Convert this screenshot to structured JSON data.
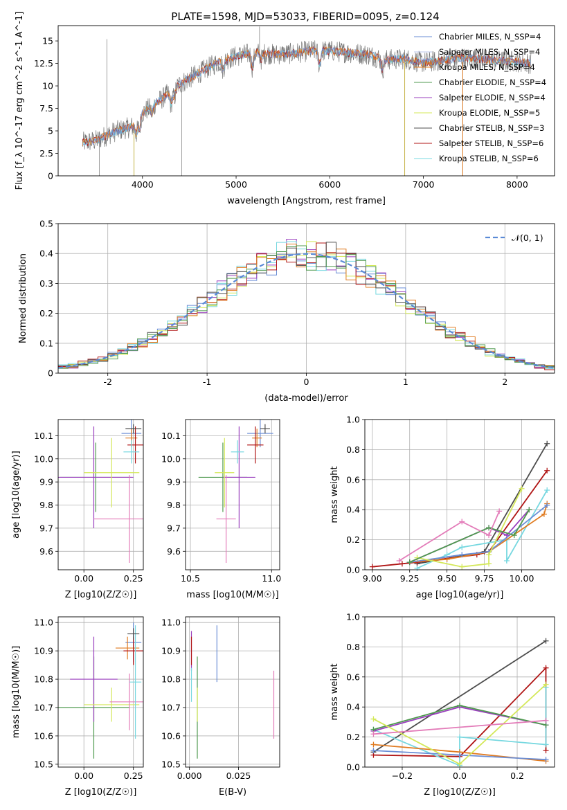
{
  "figure_title": "PLATE=1598, MJD=53033, FIBERID=0095, z=0.124",
  "colors": {
    "Chabrier MILES": "#6a8ed6",
    "Salpeter MILES": "#b8c4ea",
    "Kroupa MILES": "#e07b21",
    "Chabrier ELODIE": "#4f9a4f",
    "Salpeter ELODIE": "#9a3fbe",
    "Kroupa ELODIE": "#d4e85a",
    "Chabrier STELIB": "#4d4d4d",
    "Salpeter STELIB": "#b01515",
    "Kroupa STELIB": "#77d8e0",
    "Pink": "#e37cb9",
    "Normal": "#5a8ad6"
  },
  "chart_data": [
    {
      "id": "spectrum",
      "type": "line",
      "title": "PLATE=1598, MJD=53033, FIBERID=0095, z=0.124",
      "xlabel": "wavelength [Angstrom, rest frame]",
      "ylabel": "Flux [f_λ 10^-17 erg cm^-2 s^-1 A^-1]",
      "xlim": [
        3100,
        8400
      ],
      "ylim": [
        0,
        16.7
      ],
      "xticks": [
        4000,
        5000,
        6000,
        7000,
        8000
      ],
      "yticks": [
        0.0,
        2.5,
        5.0,
        7.5,
        10.0,
        12.5,
        15.0
      ],
      "legend": [
        "Chabrier MILES, N_SSP=4",
        "Salpeter MILES, N_SSP=4",
        "Kroupa MILES, N_SSP=4",
        "Chabrier ELODIE, N_SSP=4",
        "Salpeter ELODIE, N_SSP=4",
        "Kroupa ELODIE, N_SSP=5",
        "Chabrier STELIB, N_SSP=3",
        "Salpeter STELIB, N_SSP=6",
        "Kroupa STELIB, N_SSP=6"
      ],
      "legend_loc": "upper right",
      "continuum": {
        "x": [
          3360,
          3500,
          3700,
          3900,
          4000,
          4200,
          4400,
          4600,
          4800,
          5000,
          5200,
          5400,
          5600,
          5800,
          6000,
          6200,
          6400,
          6600,
          6800,
          7000,
          7200,
          7400,
          7600,
          7800,
          8000,
          8150
        ],
        "y": [
          3.7,
          3.9,
          4.9,
          5.5,
          7.0,
          8.5,
          10.2,
          11.4,
          12.6,
          13.3,
          13.7,
          13.5,
          13.6,
          13.9,
          13.9,
          13.7,
          13.5,
          12.9,
          13.0,
          12.6,
          12.8,
          13.1,
          13.0,
          12.8,
          12.7,
          12.5
        ]
      }
    },
    {
      "id": "residuals",
      "type": "histogram",
      "xlabel": "(data-model)/error",
      "ylabel": "Normed distribution",
      "xlim": [
        -2.5,
        2.5
      ],
      "ylim": [
        0,
        0.5
      ],
      "xticks": [
        -2,
        -1,
        0,
        1,
        2
      ],
      "yticks": [
        0.0,
        0.1,
        0.2,
        0.3,
        0.4,
        0.5
      ],
      "legend": [
        "𝒩(0, 1)"
      ],
      "legend_loc": "upper right",
      "bin_width": 0.1
    },
    {
      "id": "age_vs_Z",
      "type": "scatter",
      "xlabel": "Z [log10(Z/Z☉)]",
      "ylabel": "age [log10(age/yr)]",
      "xlim": [
        -0.13,
        0.3
      ],
      "ylim": [
        9.52,
        10.17
      ],
      "xticks": [
        "0.00",
        "0.25"
      ],
      "yticks": [
        "9.6",
        "9.7",
        "9.8",
        "9.9",
        "10.0",
        "10.1"
      ],
      "points": [
        {
          "model": "Chabrier ELODIE",
          "x": 0.06,
          "xerr": 0.18,
          "y": 9.92,
          "yerr": 0.15
        },
        {
          "model": "Salpeter ELODIE",
          "x": 0.05,
          "xerr": 0.2,
          "y": 9.92,
          "yerr": 0.22
        },
        {
          "model": "Kroupa ELODIE",
          "x": 0.14,
          "xerr": 0.14,
          "y": 9.94,
          "yerr": 0.15
        },
        {
          "model": "Pink",
          "x": 0.23,
          "xerr": 0.18,
          "y": 9.74,
          "yerr": 0.19
        },
        {
          "model": "Chabrier MILES",
          "x": 0.24,
          "xerr": 0.05,
          "y": 10.11,
          "yerr": 0.06
        },
        {
          "model": "Kroupa MILES",
          "x": 0.24,
          "xerr": 0.03,
          "y": 10.09,
          "yerr": 0.04
        },
        {
          "model": "Salpeter STELIB",
          "x": 0.26,
          "xerr": 0.04,
          "y": 10.06,
          "yerr": 0.08
        },
        {
          "model": "Kroupa STELIB",
          "x": 0.24,
          "xerr": 0.04,
          "y": 10.03,
          "yerr": 0.05
        },
        {
          "model": "Chabrier STELIB",
          "x": 0.25,
          "xerr": 0.04,
          "y": 10.13,
          "yerr": 0.02
        }
      ]
    },
    {
      "id": "age_vs_mass",
      "type": "scatter",
      "xlabel": "mass [log10(M/M☉)]",
      "xlim": [
        10.47,
        11.05
      ],
      "ylim": [
        9.52,
        10.17
      ],
      "xticks": [
        "10.5",
        "11.0"
      ],
      "yticks": [
        "9.6",
        "9.7",
        "9.8",
        "9.9",
        "10.0",
        "10.1"
      ],
      "points": [
        {
          "model": "Chabrier ELODIE",
          "x": 10.7,
          "xerr": 0.15,
          "y": 9.92,
          "yerr": 0.15
        },
        {
          "model": "Salpeter ELODIE",
          "x": 10.8,
          "xerr": 0.1,
          "y": 9.92,
          "yerr": 0.22
        },
        {
          "model": "Kroupa ELODIE",
          "x": 10.71,
          "xerr": 0.06,
          "y": 9.94,
          "yerr": 0.15
        },
        {
          "model": "Pink",
          "x": 10.72,
          "xerr": 0.06,
          "y": 9.74,
          "yerr": 0.19
        },
        {
          "model": "Chabrier MILES",
          "x": 10.93,
          "xerr": 0.08,
          "y": 10.11,
          "yerr": 0.06
        },
        {
          "model": "Kroupa MILES",
          "x": 10.91,
          "xerr": 0.03,
          "y": 10.09,
          "yerr": 0.04
        },
        {
          "model": "Salpeter STELIB",
          "x": 10.9,
          "xerr": 0.05,
          "y": 10.06,
          "yerr": 0.08
        },
        {
          "model": "Kroupa STELIB",
          "x": 10.79,
          "xerr": 0.04,
          "y": 10.03,
          "yerr": 0.05
        },
        {
          "model": "Chabrier STELIB",
          "x": 10.96,
          "xerr": 0.03,
          "y": 10.13,
          "yerr": 0.02
        }
      ]
    },
    {
      "id": "weight_vs_age",
      "type": "line",
      "xlabel": "age [log10(age/yr)]",
      "ylabel": "mass weight",
      "xlim": [
        8.95,
        10.22
      ],
      "ylim": [
        0,
        1
      ],
      "xticks": [
        "9.00",
        "9.25",
        "9.50",
        "9.75",
        "10.00"
      ],
      "yticks": [
        "0.0",
        "0.2",
        "0.4",
        "0.6",
        "0.8",
        "1.0"
      ],
      "series": [
        {
          "model": "Chabrier STELIB",
          "x": [
            9.3,
            9.75,
            10.17
          ],
          "y": [
            0.04,
            0.12,
            0.84
          ]
        },
        {
          "model": "Salpeter STELIB",
          "x": [
            9.0,
            9.2,
            9.3,
            9.7,
            9.78,
            10.17
          ],
          "y": [
            0.02,
            0.04,
            0.05,
            0.1,
            0.12,
            0.66
          ]
        },
        {
          "model": "Kroupa STELIB",
          "x": [
            9.3,
            9.5,
            9.6,
            9.9,
            9.9,
            10.17
          ],
          "y": [
            0.01,
            0.1,
            0.15,
            0.2,
            0.06,
            0.53
          ]
        },
        {
          "model": "Kroupa MILES",
          "x": [
            9.25,
            9.5,
            9.78,
            10.15,
            10.17
          ],
          "y": [
            0.05,
            0.07,
            0.12,
            0.37,
            0.44
          ]
        },
        {
          "model": "Chabrier MILES",
          "x": [
            9.25,
            9.6,
            9.78,
            10.17
          ],
          "y": [
            0.05,
            0.1,
            0.12,
            0.43
          ]
        },
        {
          "model": "Salpeter ELODIE",
          "x": [
            9.25,
            9.78,
            9.9,
            10.05
          ],
          "y": [
            0.05,
            0.28,
            0.23,
            0.4
          ]
        },
        {
          "model": "Kroupa ELODIE",
          "x": [
            9.3,
            9.6,
            9.78,
            9.78,
            10.0
          ],
          "y": [
            0.08,
            0.02,
            0.04,
            0.1,
            0.54
          ]
        },
        {
          "model": "Chabrier ELODIE",
          "x": [
            9.25,
            9.78,
            9.95,
            10.05
          ],
          "y": [
            0.05,
            0.28,
            0.23,
            0.4
          ]
        },
        {
          "model": "Pink",
          "x": [
            9.18,
            9.6,
            9.78,
            9.85
          ],
          "y": [
            0.06,
            0.32,
            0.23,
            0.39
          ]
        }
      ]
    },
    {
      "id": "mass_vs_Z",
      "type": "scatter",
      "xlabel": "Z [log10(Z/Z☉)]",
      "ylabel": "mass [log10(M/M☉)]",
      "xlim": [
        -0.13,
        0.3
      ],
      "ylim": [
        10.49,
        11.02
      ],
      "xticks": [
        "0.00",
        "0.25"
      ],
      "yticks": [
        "10.5",
        "10.6",
        "10.7",
        "10.8",
        "10.9",
        "11.0"
      ],
      "points": [
        {
          "model": "Chabrier ELODIE",
          "x": 0.05,
          "xerr": 0.18,
          "y": 10.7,
          "yerr": 0.18
        },
        {
          "model": "Salpeter ELODIE",
          "x": 0.05,
          "xerr": 0.12,
          "y": 10.8,
          "yerr": 0.15
        },
        {
          "model": "Kroupa ELODIE",
          "x": 0.14,
          "xerr": 0.14,
          "y": 10.71,
          "yerr": 0.06
        },
        {
          "model": "Pink",
          "x": 0.23,
          "xerr": 0.1,
          "y": 10.72,
          "yerr": 0.1
        },
        {
          "model": "Chabrier MILES",
          "x": 0.25,
          "xerr": 0.04,
          "y": 10.93,
          "yerr": 0.07
        },
        {
          "model": "Kroupa MILES",
          "x": 0.22,
          "xerr": 0.06,
          "y": 10.91,
          "yerr": 0.04
        },
        {
          "model": "Salpeter STELIB",
          "x": 0.25,
          "xerr": 0.05,
          "y": 10.9,
          "yerr": 0.05
        },
        {
          "model": "Kroupa STELIB",
          "x": 0.26,
          "xerr": 0.03,
          "y": 10.79,
          "yerr": 0.2
        },
        {
          "model": "Chabrier STELIB",
          "x": 0.25,
          "xerr": 0.03,
          "y": 10.96,
          "yerr": 0.02
        }
      ]
    },
    {
      "id": "mass_vs_EBV",
      "type": "scatter",
      "xlabel": "E(B-V)",
      "xlim": [
        -0.002,
        0.046
      ],
      "ylim": [
        10.49,
        11.02
      ],
      "xticks": [
        "0.000",
        "0.025"
      ],
      "yticks": [
        "10.5",
        "10.6",
        "10.7",
        "10.8",
        "10.9",
        "11.0"
      ],
      "points": [
        {
          "model": "Chabrier ELODIE",
          "x": 0.004,
          "xerr": 0,
          "y": 10.7,
          "yerr": 0.18
        },
        {
          "model": "Salpeter ELODIE",
          "x": 0.001,
          "xerr": 0,
          "y": 10.9,
          "yerr": 0.07
        },
        {
          "model": "Kroupa ELODIE",
          "x": 0.004,
          "xerr": 0,
          "y": 10.71,
          "yerr": 0.06
        },
        {
          "model": "Pink",
          "x": 0.043,
          "xerr": 0,
          "y": 10.71,
          "yerr": 0.12
        },
        {
          "model": "Chabrier MILES",
          "x": 0.014,
          "xerr": 0,
          "y": 10.89,
          "yerr": 0.1
        },
        {
          "model": "Salpeter STELIB",
          "x": 0.001,
          "xerr": 0,
          "y": 10.9,
          "yerr": 0.05
        },
        {
          "model": "Kroupa STELIB",
          "x": 0.001,
          "xerr": 0,
          "y": 10.78,
          "yerr": 0.06
        }
      ]
    },
    {
      "id": "weight_vs_Z",
      "type": "line",
      "xlabel": "Z [log10(Z/Z☉)]",
      "ylabel": "mass weight",
      "xlim": [
        -0.33,
        0.33
      ],
      "ylim": [
        0,
        1
      ],
      "xticks": [
        "−0.2",
        "0.0",
        "0.2"
      ],
      "yticks": [
        "0.0",
        "0.2",
        "0.4",
        "0.6",
        "0.8",
        "1.0"
      ],
      "series": [
        {
          "model": "Chabrier STELIB",
          "x": [
            -0.3,
            0.3
          ],
          "y": [
            0.1,
            0.84
          ]
        },
        {
          "model": "Salpeter STELIB",
          "x": [
            -0.3,
            0.0,
            0.3,
            0.3
          ],
          "y": [
            0.08,
            0.07,
            0.66,
            0.11
          ]
        },
        {
          "model": "Kroupa STELIB",
          "x": [
            -0.3,
            0.0,
            0.0,
            0.3,
            0.3
          ],
          "y": [
            0.25,
            0.01,
            0.2,
            0.15,
            0.53
          ]
        },
        {
          "model": "Kroupa MILES",
          "x": [
            -0.3,
            0.0,
            0.3
          ],
          "y": [
            0.15,
            0.1,
            0.04
          ]
        },
        {
          "model": "Chabrier MILES",
          "x": [
            -0.3,
            0.0,
            0.3
          ],
          "y": [
            0.11,
            0.08,
            0.05
          ]
        },
        {
          "model": "Salpeter ELODIE",
          "x": [
            -0.3,
            0.0,
            0.3
          ],
          "y": [
            0.24,
            0.4,
            0.28
          ]
        },
        {
          "model": "Chabrier ELODIE",
          "x": [
            -0.3,
            0.0,
            0.3
          ],
          "y": [
            0.25,
            0.41,
            0.28
          ]
        },
        {
          "model": "Kroupa ELODIE",
          "x": [
            -0.3,
            0.0,
            0.3
          ],
          "y": [
            0.32,
            0.02,
            0.55
          ]
        },
        {
          "model": "Pink",
          "x": [
            -0.3,
            0.3
          ],
          "y": [
            0.22,
            0.31
          ]
        }
      ]
    }
  ]
}
